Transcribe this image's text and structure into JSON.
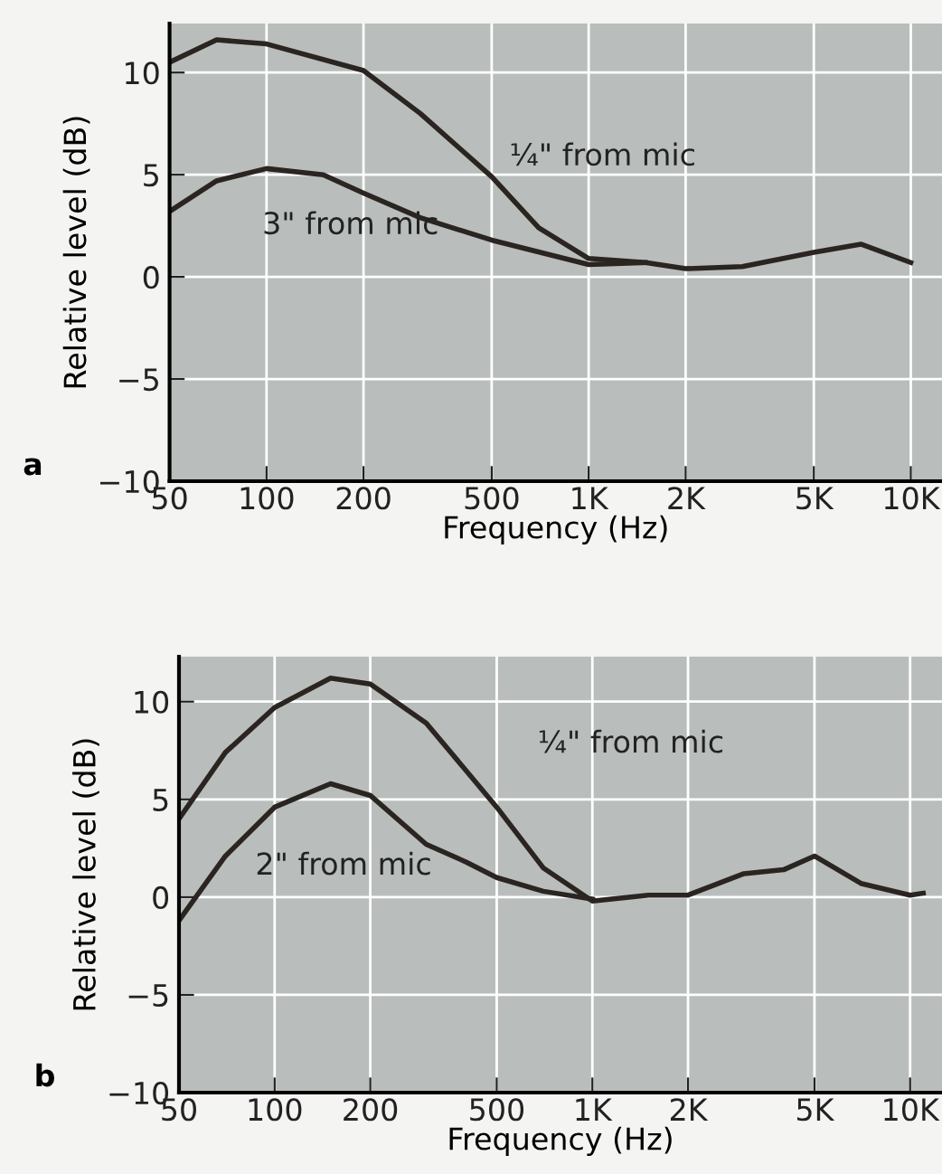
{
  "chart_data": [
    {
      "type": "line",
      "xlabel": "Frequency (Hz)",
      "ylabel": "Relative level (dB)",
      "log": "x",
      "grid": true,
      "legend": false,
      "marker": "none",
      "line_style": "solid",
      "xlim": [
        50,
        12500
      ],
      "ylim": [
        -10,
        12.4
      ],
      "xticks": [
        50,
        100,
        200,
        500,
        {
          "value": 1000,
          "label": "1K"
        },
        {
          "value": 2000,
          "label": "2K"
        },
        {
          "value": 5000,
          "label": "5K"
        },
        {
          "value": 10000,
          "label": "10K"
        }
      ],
      "yticks": [
        -10,
        -5,
        0,
        5,
        10
      ],
      "annotations": [
        "a"
      ],
      "series": [
        {
          "name": "¼\" from mic",
          "color": "#2a2520",
          "x": [
            50,
            70,
            100,
            200,
            300,
            500,
            700,
            1000,
            1500,
            2000,
            3000,
            5000,
            7000,
            10000
          ],
          "values": [
            10.5,
            11.6,
            11.4,
            10.1,
            8.0,
            4.9,
            2.4,
            0.9,
            0.7,
            0.4,
            0.5,
            1.2,
            1.6,
            0.7
          ]
        },
        {
          "name": "3\" from mic",
          "color": "#2a2520",
          "x": [
            50,
            70,
            100,
            150,
            200,
            300,
            500,
            1000,
            1500
          ],
          "values": [
            3.2,
            4.7,
            5.3,
            5.0,
            4.1,
            2.9,
            1.8,
            0.6,
            0.7
          ]
        }
      ]
    },
    {
      "type": "line",
      "xlabel": "Frequency (Hz)",
      "ylabel": "Relative level (dB)",
      "log": "x",
      "grid": true,
      "legend": false,
      "marker": "none",
      "line_style": "solid",
      "xlim": [
        50,
        12600
      ],
      "ylim": [
        -10,
        12.3
      ],
      "xticks": [
        50,
        100,
        200,
        500,
        {
          "value": 1000,
          "label": "1K"
        },
        {
          "value": 2000,
          "label": "2K"
        },
        {
          "value": 5000,
          "label": "5K"
        },
        {
          "value": 10000,
          "label": "10K"
        }
      ],
      "yticks": [
        -10,
        -5,
        0,
        5,
        10
      ],
      "annotations": [
        "b"
      ],
      "series": [
        {
          "name": "¼\" from mic",
          "color": "#2a2520",
          "x": [
            50,
            70,
            100,
            150,
            200,
            300,
            500,
            700,
            1000,
            1500,
            2000,
            3000,
            4000,
            5000,
            7000,
            10000,
            11000
          ],
          "values": [
            4.0,
            7.4,
            9.7,
            11.2,
            10.9,
            8.9,
            4.6,
            1.5,
            -0.2,
            0.1,
            0.1,
            1.2,
            1.4,
            2.1,
            0.7,
            0.1,
            0.2
          ]
        },
        {
          "name": "2\" from mic",
          "color": "#2a2520",
          "x": [
            50,
            70,
            100,
            150,
            200,
            300,
            400,
            500,
            700,
            1000
          ],
          "values": [
            -1.2,
            2.1,
            4.6,
            5.8,
            5.2,
            2.7,
            1.8,
            1.0,
            0.3,
            -0.1
          ]
        }
      ]
    }
  ]
}
